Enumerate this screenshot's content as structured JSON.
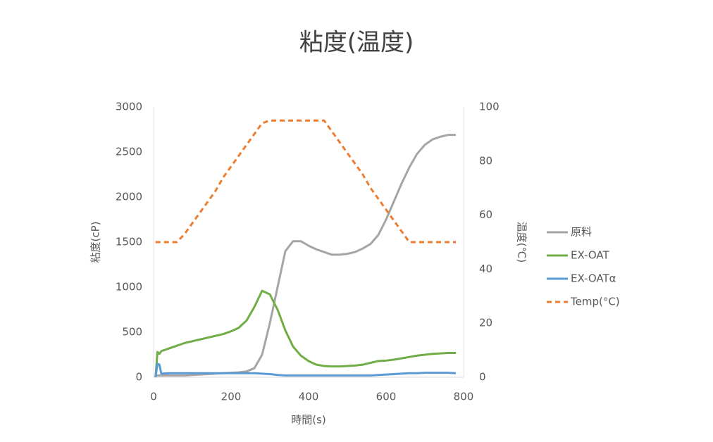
{
  "chart_data": {
    "type": "line",
    "title": "粘度(温度)",
    "x_label": "時間(s)",
    "y_label": "粘度(cP)",
    "y2_label": "温度(℃)",
    "x": [
      5,
      10,
      15,
      20,
      40,
      60,
      80,
      100,
      120,
      140,
      160,
      180,
      200,
      220,
      240,
      260,
      280,
      300,
      320,
      340,
      360,
      380,
      400,
      420,
      440,
      460,
      480,
      500,
      520,
      540,
      560,
      580,
      600,
      620,
      640,
      660,
      680,
      700,
      720,
      740,
      760,
      780
    ],
    "xlim": [
      0,
      800
    ],
    "xticks": [
      0,
      200,
      400,
      600,
      800
    ],
    "ylim": [
      0,
      3000
    ],
    "yticks": [
      0,
      500,
      1000,
      1500,
      2000,
      2500,
      3000
    ],
    "y2lim": [
      0,
      100
    ],
    "y2ticks": [
      0,
      20,
      40,
      60,
      80,
      100
    ],
    "legend": "right",
    "series": [
      {
        "name": "原料",
        "color": "#a5a5a5",
        "dash": false,
        "values": [
          20,
          20,
          20,
          20,
          20,
          20,
          20,
          25,
          30,
          35,
          40,
          45,
          50,
          55,
          65,
          100,
          250,
          600,
          1000,
          1400,
          1510,
          1510,
          1460,
          1420,
          1390,
          1360,
          1360,
          1370,
          1390,
          1430,
          1480,
          1580,
          1750,
          1950,
          2150,
          2330,
          2480,
          2580,
          2640,
          2670,
          2690,
          2690
        ]
      },
      {
        "name": "EX-OAT",
        "color": "#70ad47",
        "dash": false,
        "values": [
          0,
          280,
          260,
          290,
          320,
          350,
          380,
          400,
          420,
          440,
          460,
          480,
          510,
          550,
          630,
          780,
          960,
          920,
          750,
          520,
          340,
          240,
          180,
          140,
          125,
          120,
          120,
          125,
          130,
          140,
          160,
          180,
          185,
          195,
          210,
          225,
          240,
          250,
          260,
          265,
          270,
          270
        ]
      },
      {
        "name": "EX-OATα",
        "color": "#5b9bd5",
        "dash": false,
        "values": [
          0,
          150,
          140,
          40,
          45,
          45,
          45,
          45,
          45,
          45,
          45,
          45,
          45,
          45,
          45,
          45,
          40,
          35,
          25,
          20,
          20,
          20,
          20,
          20,
          20,
          20,
          20,
          20,
          20,
          20,
          20,
          25,
          30,
          35,
          40,
          45,
          45,
          50,
          50,
          50,
          50,
          45
        ]
      },
      {
        "name": "Temp(°C)",
        "color": "#ed7d31",
        "dash": true,
        "axis": "y2",
        "values": [
          50,
          50,
          50,
          50,
          50,
          50,
          53,
          57,
          61,
          65,
          69,
          74,
          78,
          82,
          86,
          90,
          94,
          95,
          95,
          95,
          95,
          95,
          95,
          95,
          95,
          91,
          87,
          83,
          79,
          75,
          70,
          66,
          62,
          58,
          54,
          50,
          50,
          50,
          50,
          50,
          50,
          50
        ]
      }
    ]
  }
}
